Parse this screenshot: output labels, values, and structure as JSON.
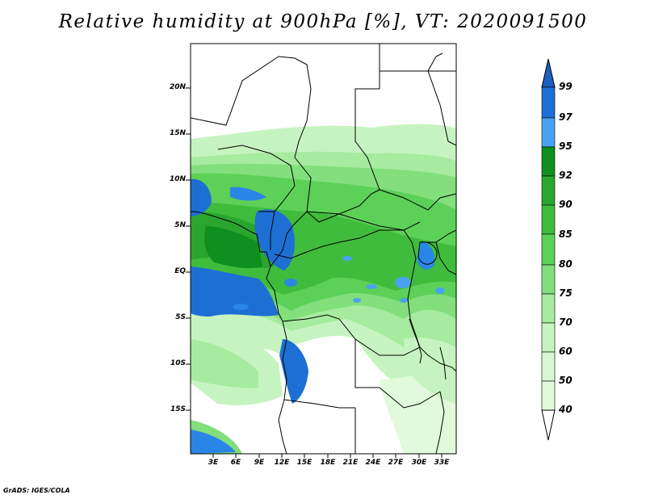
{
  "title": "Relative humidity at 900hPa [%], VT: 2020091500",
  "credit": "GrADS: IGES/COLA",
  "map": {
    "lat_labels": [
      "20N",
      "15N",
      "10N",
      "5N",
      "EQ",
      "5S",
      "10S",
      "15S"
    ],
    "lon_labels": [
      "3E",
      "6E",
      "9E",
      "12E",
      "15E",
      "18E",
      "21E",
      "24E",
      "27E",
      "30E",
      "33E"
    ]
  },
  "colorbar": {
    "levels": [
      "99",
      "97",
      "95",
      "92",
      "90",
      "85",
      "80",
      "75",
      "70",
      "60",
      "50",
      "40"
    ],
    "colors": [
      "#1e6fd4",
      "#2a86e6",
      "#4aa3f0",
      "#0f8f1e",
      "#2aa62f",
      "#3fbc3c",
      "#5dd058",
      "#82df7c",
      "#a6eb9f",
      "#c6f4c0",
      "#e2fadc",
      "#ffffff"
    ],
    "top_arrow_color": "#1e5fc2"
  }
}
